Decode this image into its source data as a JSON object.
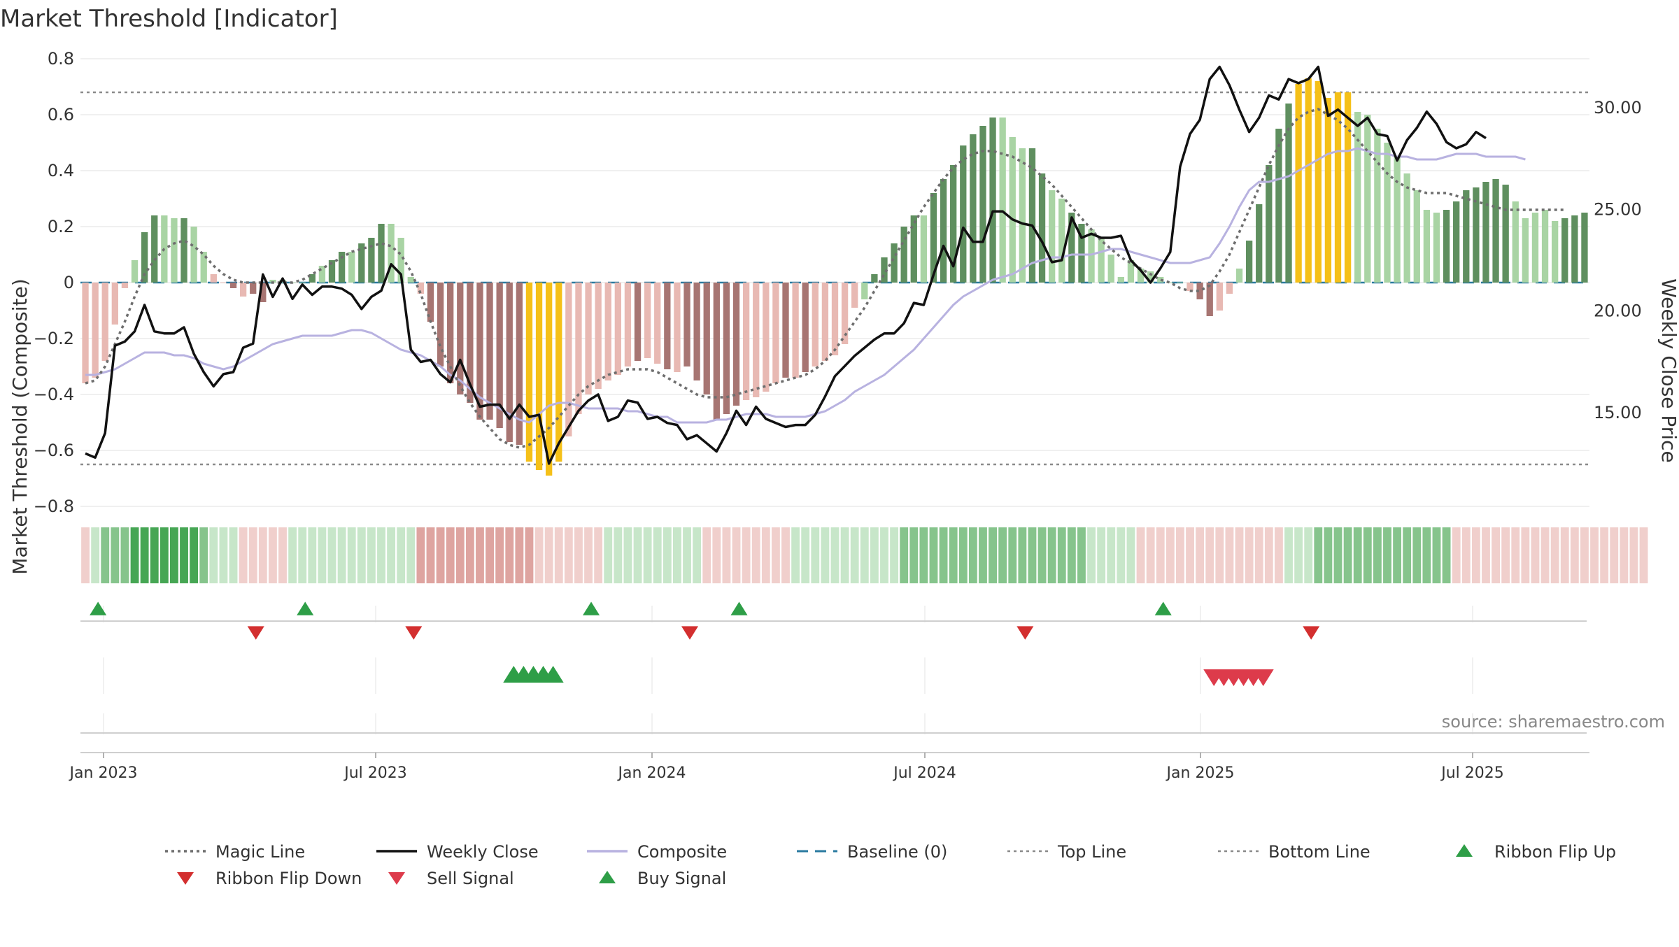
{
  "title": "Market Threshold [Indicator]",
  "source": "source: sharemaestro.com",
  "colors": {
    "bar_pos_strong": "#5f8f5f",
    "bar_pos_weak": "#a9d4a4",
    "bar_neg_strong": "#a77572",
    "bar_neg_weak": "#e8b9b3",
    "bar_extreme": "#f5c018",
    "weekly_close": "#111111",
    "composite": "#b8b2e0",
    "magic_line": "#6e6e6e",
    "baseline": "#2a7aa0",
    "buy": "#2e9e47",
    "sell": "#dd3b4b",
    "flip_up": "#2e9e47",
    "flip_down": "#d32f2f"
  },
  "chart_data": {
    "type": "bar",
    "ylabel": "Market Threshold (Composite)",
    "y2label": "Weekly Close Price",
    "ylim": [
      -0.8,
      0.8
    ],
    "yticks": [
      "0.8",
      "0.6",
      "0.4",
      "0.2",
      "0",
      "−0.2",
      "−0.4",
      "−0.6",
      "−0.8"
    ],
    "y2lim": [
      10.4,
      32.4
    ],
    "y2ticks": [
      "30.00",
      "25.00",
      "20.00",
      "15.00"
    ],
    "xticks": [
      "Jan 2023",
      "Jul 2023",
      "Jan 2024",
      "Jul 2024",
      "Jan 2025",
      "Jul 2025"
    ],
    "top_line": 0.68,
    "bottom_line": -0.65,
    "baseline": 0,
    "composite_bars": [
      -0.36,
      -0.34,
      -0.28,
      -0.15,
      -0.02,
      0.08,
      0.18,
      0.24,
      0.24,
      0.23,
      0.23,
      0.2,
      0.11,
      0.03,
      0.0,
      -0.02,
      -0.05,
      -0.04,
      -0.07,
      0.01,
      0.01,
      0.0,
      0.0,
      0.03,
      0.06,
      0.08,
      0.11,
      0.11,
      0.14,
      0.16,
      0.21,
      0.21,
      0.16,
      0.02,
      -0.04,
      -0.14,
      -0.3,
      -0.36,
      -0.4,
      -0.43,
      -0.49,
      -0.49,
      -0.52,
      -0.57,
      -0.58,
      -0.64,
      -0.67,
      -0.69,
      -0.64,
      -0.55,
      -0.47,
      -0.4,
      -0.38,
      -0.35,
      -0.33,
      -0.3,
      -0.28,
      -0.27,
      -0.29,
      -0.31,
      -0.32,
      -0.3,
      -0.35,
      -0.4,
      -0.49,
      -0.47,
      -0.44,
      -0.42,
      -0.41,
      -0.39,
      -0.36,
      -0.34,
      -0.34,
      -0.32,
      -0.3,
      -0.28,
      -0.26,
      -0.22,
      -0.09,
      -0.06,
      0.03,
      0.09,
      0.14,
      0.2,
      0.24,
      0.24,
      0.32,
      0.37,
      0.42,
      0.49,
      0.53,
      0.56,
      0.59,
      0.59,
      0.52,
      0.48,
      0.48,
      0.39,
      0.33,
      0.3,
      0.25,
      0.21,
      0.19,
      0.16,
      0.1,
      0.02,
      0.08,
      0.05,
      0.04,
      0.02,
      0.0,
      0.0,
      -0.03,
      -0.06,
      -0.12,
      -0.1,
      -0.04,
      0.05,
      0.15,
      0.28,
      0.42,
      0.55,
      0.64,
      0.71,
      0.73,
      0.72,
      0.66,
      0.68,
      0.68,
      0.61,
      0.6,
      0.55,
      0.5,
      0.45,
      0.39,
      0.33,
      0.26,
      0.25,
      0.26,
      0.29,
      0.33,
      0.34,
      0.36,
      0.37,
      0.35,
      0.29,
      0.23,
      0.25,
      0.26,
      0.22,
      0.23,
      0.24,
      0.25
    ],
    "bar_category": [
      "nw",
      "nw",
      "nw",
      "nw",
      "nw",
      "pw",
      "ps",
      "ps",
      "pw",
      "pw",
      "ps",
      "pw",
      "pw",
      "nw",
      "nw",
      "ns",
      "nw",
      "ns",
      "ns",
      "pw",
      "pw",
      "pw",
      "pw",
      "ps",
      "pw",
      "ps",
      "ps",
      "pw",
      "ps",
      "ps",
      "ps",
      "pw",
      "pw",
      "pw",
      "nw",
      "ns",
      "ns",
      "ns",
      "ns",
      "ns",
      "ns",
      "ns",
      "ns",
      "ns",
      "ns",
      "ex",
      "ex",
      "ex",
      "ex",
      "nw",
      "nw",
      "nw",
      "nw",
      "nw",
      "nw",
      "nw",
      "ns",
      "nw",
      "nw",
      "ns",
      "nw",
      "ns",
      "ns",
      "ns",
      "ns",
      "ns",
      "ns",
      "nw",
      "nw",
      "nw",
      "nw",
      "ns",
      "nw",
      "ns",
      "nw",
      "nw",
      "nw",
      "nw",
      "nw",
      "pw",
      "ps",
      "ps",
      "ps",
      "ps",
      "ps",
      "pw",
      "ps",
      "ps",
      "ps",
      "ps",
      "ps",
      "ps",
      "ps",
      "pw",
      "pw",
      "pw",
      "ps",
      "ps",
      "pw",
      "pw",
      "ps",
      "ps",
      "pw",
      "pw",
      "pw",
      "pw",
      "pw",
      "pw",
      "pw",
      "pw",
      "pw",
      "pw",
      "nw",
      "ns",
      "ns",
      "nw",
      "nw",
      "pw",
      "ps",
      "ps",
      "ps",
      "ps",
      "ps",
      "ex",
      "ex",
      "ex",
      "ex",
      "ex",
      "ex",
      "pw",
      "pw",
      "pw",
      "pw",
      "pw",
      "pw",
      "pw",
      "pw",
      "pw",
      "ps",
      "ps",
      "ps",
      "ps",
      "ps",
      "ps",
      "ps",
      "pw",
      "pw",
      "pw",
      "pw",
      "pw",
      "ps",
      "ps",
      "ps",
      "ps"
    ],
    "weekly_close": [
      13.0,
      12.8,
      14.0,
      18.3,
      18.5,
      19.0,
      20.3,
      19.0,
      18.9,
      18.9,
      19.2,
      17.9,
      17.0,
      16.3,
      16.9,
      17.0,
      18.2,
      18.4,
      21.8,
      20.7,
      21.6,
      20.6,
      21.3,
      20.8,
      21.2,
      21.2,
      21.1,
      20.8,
      20.1,
      20.7,
      21.0,
      22.3,
      21.8,
      18.1,
      17.5,
      17.6,
      16.9,
      16.5,
      17.6,
      16.4,
      15.3,
      15.4,
      15.4,
      14.7,
      15.4,
      14.8,
      14.9,
      12.5,
      13.5,
      14.3,
      15.1,
      15.6,
      15.9,
      14.6,
      14.8,
      15.6,
      15.5,
      14.7,
      14.8,
      14.5,
      14.4,
      13.7,
      13.9,
      13.5,
      13.1,
      14.0,
      15.1,
      14.4,
      15.3,
      14.7,
      14.5,
      14.3,
      14.4,
      14.4,
      14.9,
      15.8,
      16.8,
      17.3,
      17.8,
      18.2,
      18.6,
      18.9,
      18.9,
      19.4,
      20.4,
      20.3,
      21.8,
      23.2,
      22.2,
      24.1,
      23.4,
      23.4,
      24.9,
      24.9,
      24.5,
      24.3,
      24.2,
      23.4,
      22.4,
      22.5,
      24.6,
      23.6,
      23.8,
      23.6,
      23.6,
      23.7,
      22.5,
      22.0,
      21.4,
      22.1,
      22.9,
      27.1,
      28.7,
      29.4,
      31.4,
      32.0,
      31.1,
      29.9,
      28.8,
      29.5,
      30.6,
      30.4,
      31.4,
      31.2,
      31.4,
      32.0,
      29.6,
      29.9,
      29.5,
      29.1,
      29.5,
      28.7,
      28.6,
      27.4,
      28.4,
      29.0,
      29.8,
      29.2,
      28.3,
      28.0,
      28.2,
      28.8,
      28.5
    ],
    "magic_line": [
      -0.36,
      -0.35,
      -0.3,
      -0.22,
      -0.14,
      -0.05,
      0.03,
      0.08,
      0.12,
      0.14,
      0.15,
      0.13,
      0.1,
      0.06,
      0.03,
      0.01,
      0.0,
      0.0,
      0.0,
      0.0,
      0.0,
      0.0,
      0.01,
      0.03,
      0.05,
      0.07,
      0.09,
      0.11,
      0.12,
      0.13,
      0.14,
      0.13,
      0.1,
      0.04,
      -0.04,
      -0.14,
      -0.23,
      -0.3,
      -0.37,
      -0.43,
      -0.48,
      -0.52,
      -0.56,
      -0.58,
      -0.59,
      -0.58,
      -0.55,
      -0.52,
      -0.48,
      -0.44,
      -0.4,
      -0.37,
      -0.35,
      -0.33,
      -0.32,
      -0.31,
      -0.31,
      -0.31,
      -0.32,
      -0.34,
      -0.36,
      -0.38,
      -0.4,
      -0.41,
      -0.41,
      -0.41,
      -0.4,
      -0.39,
      -0.38,
      -0.37,
      -0.36,
      -0.35,
      -0.34,
      -0.33,
      -0.31,
      -0.28,
      -0.24,
      -0.19,
      -0.14,
      -0.09,
      -0.03,
      0.03,
      0.09,
      0.15,
      0.21,
      0.27,
      0.32,
      0.37,
      0.41,
      0.44,
      0.46,
      0.47,
      0.47,
      0.46,
      0.45,
      0.43,
      0.41,
      0.38,
      0.35,
      0.31,
      0.27,
      0.23,
      0.19,
      0.15,
      0.12,
      0.09,
      0.07,
      0.05,
      0.03,
      0.01,
      0.0,
      -0.02,
      -0.03,
      -0.03,
      -0.01,
      0.04,
      0.1,
      0.18,
      0.26,
      0.34,
      0.42,
      0.49,
      0.55,
      0.59,
      0.61,
      0.62,
      0.6,
      0.58,
      0.55,
      0.51,
      0.47,
      0.43,
      0.39,
      0.36,
      0.34,
      0.33,
      0.32,
      0.32,
      0.32,
      0.31,
      0.3,
      0.29,
      0.28,
      0.27,
      0.26,
      0.26,
      0.26,
      0.26,
      0.26,
      0.26,
      0.26
    ],
    "composite_line": [
      -0.33,
      -0.33,
      -0.32,
      -0.31,
      -0.29,
      -0.27,
      -0.25,
      -0.25,
      -0.25,
      -0.26,
      -0.26,
      -0.27,
      -0.29,
      -0.3,
      -0.31,
      -0.3,
      -0.28,
      -0.26,
      -0.24,
      -0.22,
      -0.21,
      -0.2,
      -0.19,
      -0.19,
      -0.19,
      -0.19,
      -0.18,
      -0.17,
      -0.17,
      -0.18,
      -0.2,
      -0.22,
      -0.24,
      -0.25,
      -0.26,
      -0.28,
      -0.3,
      -0.33,
      -0.35,
      -0.38,
      -0.41,
      -0.43,
      -0.45,
      -0.47,
      -0.49,
      -0.5,
      -0.47,
      -0.44,
      -0.43,
      -0.43,
      -0.44,
      -0.45,
      -0.45,
      -0.45,
      -0.45,
      -0.46,
      -0.46,
      -0.47,
      -0.48,
      -0.48,
      -0.5,
      -0.5,
      -0.5,
      -0.5,
      -0.49,
      -0.49,
      -0.48,
      -0.47,
      -0.47,
      -0.47,
      -0.48,
      -0.48,
      -0.48,
      -0.48,
      -0.47,
      -0.46,
      -0.44,
      -0.42,
      -0.39,
      -0.37,
      -0.35,
      -0.33,
      -0.3,
      -0.27,
      -0.24,
      -0.2,
      -0.16,
      -0.12,
      -0.08,
      -0.05,
      -0.03,
      -0.01,
      0.01,
      0.02,
      0.03,
      0.05,
      0.07,
      0.08,
      0.09,
      0.09,
      0.1,
      0.1,
      0.1,
      0.11,
      0.12,
      0.12,
      0.11,
      0.1,
      0.09,
      0.08,
      0.07,
      0.07,
      0.07,
      0.08,
      0.09,
      0.14,
      0.2,
      0.27,
      0.33,
      0.36,
      0.36,
      0.37,
      0.38,
      0.4,
      0.42,
      0.44,
      0.46,
      0.47,
      0.47,
      0.48,
      0.47,
      0.46,
      0.46,
      0.45,
      0.45,
      0.44,
      0.44,
      0.44,
      0.45,
      0.46,
      0.46,
      0.46,
      0.45,
      0.45,
      0.45,
      0.45,
      0.44
    ],
    "ribbon": [
      "r1",
      "g1",
      "g2",
      "g2",
      "g2",
      "g3",
      "g3",
      "g3",
      "g3",
      "g3",
      "g3",
      "g3",
      "g2",
      "g1",
      "g1",
      "g1",
      "r1",
      "r1",
      "r1",
      "r1",
      "r1",
      "g1",
      "g1",
      "g1",
      "g1",
      "g1",
      "g1",
      "g1",
      "g1",
      "g1",
      "g1",
      "g1",
      "g1",
      "g1",
      "r2",
      "r2",
      "r2",
      "r2",
      "r2",
      "r2",
      "r2",
      "r2",
      "r2",
      "r2",
      "r2",
      "r2",
      "r1",
      "r1",
      "r1",
      "r1",
      "r1",
      "r1",
      "r1",
      "g1",
      "g1",
      "g1",
      "g1",
      "g1",
      "g1",
      "g1",
      "g1",
      "g1",
      "g1",
      "r1",
      "r1",
      "r1",
      "r1",
      "r1",
      "r1",
      "r1",
      "r1",
      "r1",
      "g1",
      "g1",
      "g1",
      "g1",
      "g1",
      "g1",
      "g1",
      "g1",
      "g1",
      "g1",
      "g1",
      "g2",
      "g2",
      "g2",
      "g2",
      "g2",
      "g2",
      "g2",
      "g2",
      "g2",
      "g2",
      "g2",
      "g2",
      "g2",
      "g2",
      "g2",
      "g2",
      "g2",
      "g2",
      "g2",
      "g1",
      "g1",
      "g1",
      "g1",
      "g1",
      "r1",
      "r1",
      "r1",
      "r1",
      "r1",
      "r1",
      "r1",
      "r1",
      "r1",
      "r1",
      "r1",
      "r1",
      "r1",
      "r1",
      "r1",
      "g1",
      "g1",
      "g1",
      "g2",
      "g2",
      "g2",
      "g2",
      "g2",
      "g2",
      "g2",
      "g2",
      "g2",
      "g2",
      "g2",
      "g2",
      "g2",
      "g2",
      "r1",
      "r1",
      "r1",
      "r1",
      "r1",
      "r1",
      "r1",
      "r1",
      "r1",
      "r1",
      "r1",
      "r1",
      "r1",
      "r1",
      "r1",
      "r1",
      "r1",
      "r1",
      "r1",
      "r1"
    ],
    "ribbon_flip_up_idx": [
      1,
      22,
      51,
      66,
      109
    ],
    "ribbon_flip_down_idx": [
      17,
      33,
      61,
      95,
      124
    ],
    "buy_signal_idx": [
      43,
      44,
      45,
      46,
      47
    ],
    "sell_signal_idx": [
      114,
      115,
      116,
      117,
      118,
      119
    ]
  },
  "legend": [
    {
      "label": "Magic Line",
      "kind": "dotted",
      "color": "#6e6e6e"
    },
    {
      "label": "Weekly Close",
      "kind": "solid",
      "color": "#111111"
    },
    {
      "label": "Composite",
      "kind": "solid",
      "color": "#b8b2e0"
    },
    {
      "label": "Baseline (0)",
      "kind": "dashed",
      "color": "#2a7aa0"
    },
    {
      "label": "Top Line",
      "kind": "dotted-thin",
      "color": "#8a8a8a"
    },
    {
      "label": "Bottom Line",
      "kind": "dotted-thin",
      "color": "#8a8a8a"
    },
    {
      "label": "Ribbon Flip Up",
      "kind": "tri-up",
      "color": "#2e9e47"
    },
    {
      "label": "Ribbon Flip Down",
      "kind": "tri-down",
      "color": "#d32f2f"
    },
    {
      "label": "Sell Signal",
      "kind": "tri-down",
      "color": "#dd3b4b"
    },
    {
      "label": "Buy Signal",
      "kind": "tri-up",
      "color": "#2e9e47"
    }
  ]
}
